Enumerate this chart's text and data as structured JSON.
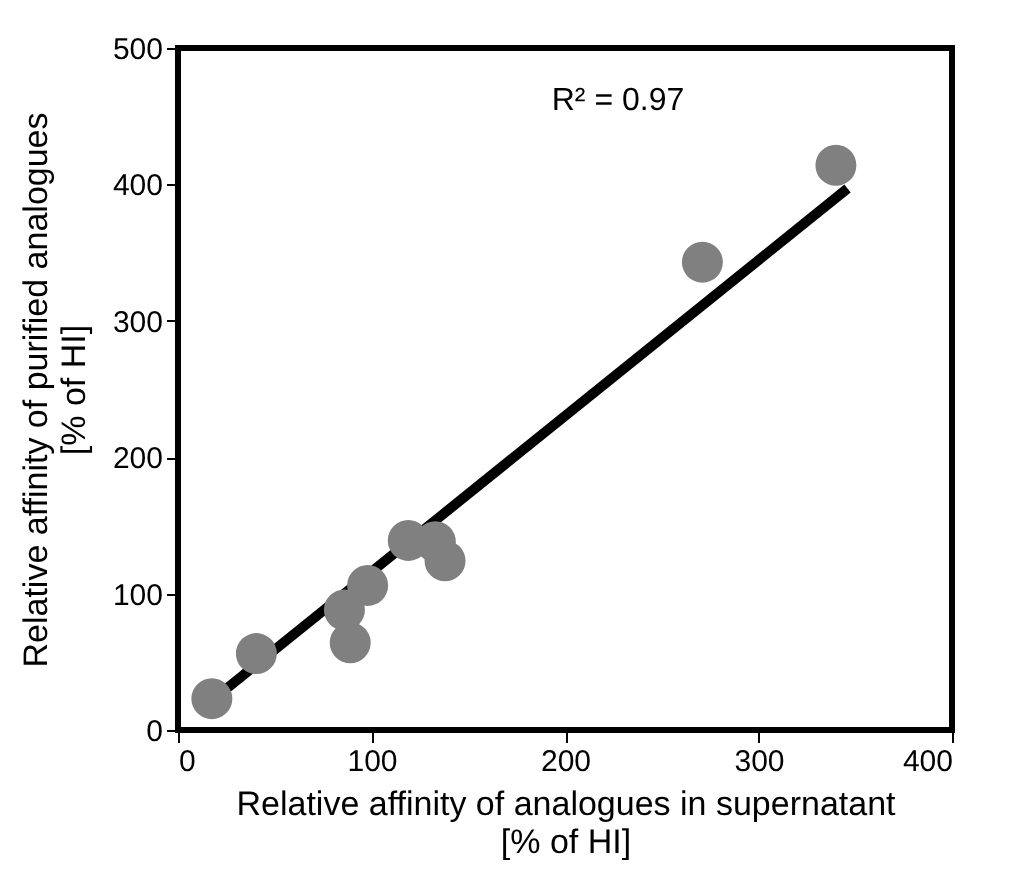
{
  "chart_data": {
    "type": "scatter",
    "xlabel": "Relative affinity of analogues in supernatant\n[% of HI]",
    "ylabel": "Relative affinity of purified analogues\n[% of HI]",
    "annotations": [
      "R² = 0.97"
    ],
    "xlim": [
      0,
      400
    ],
    "xticks": [
      0,
      100,
      200,
      300,
      400
    ],
    "ylim": [
      0,
      500
    ],
    "yticks": [
      0,
      100,
      200,
      300,
      400,
      500
    ],
    "grid": false,
    "marker": "circle",
    "series": [
      {
        "type": "line",
        "color": "#000000",
        "line_style": "solid",
        "marker": "none",
        "x": [
          23,
          346
        ],
        "values": [
          28,
          397
        ]
      },
      {
        "color": "#808080",
        "x": [
          17.5,
          40.5,
          86,
          89,
          98,
          119,
          133,
          138,
          271,
          340
        ],
        "values": [
          23,
          56,
          88,
          64,
          106,
          139,
          138,
          124,
          343,
          414
        ]
      }
    ]
  }
}
